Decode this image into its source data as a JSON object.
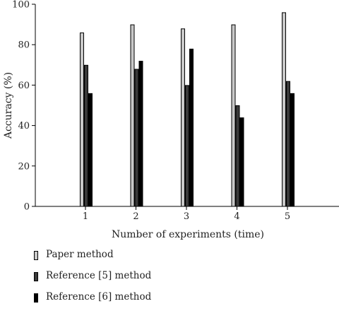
{
  "chart_data": {
    "type": "bar",
    "categories": [
      "1",
      "2",
      "3",
      "4",
      "5"
    ],
    "series": [
      {
        "name": "Paper method",
        "values": [
          86,
          90,
          88,
          90,
          96
        ],
        "color": "#c8c8c8"
      },
      {
        "name": "Reference [5] method",
        "values": [
          70,
          68,
          60,
          50,
          62
        ],
        "color": "#3a3a3a"
      },
      {
        "name": "Reference [6] method",
        "values": [
          56,
          72,
          78,
          44,
          56
        ],
        "color": "#000000"
      }
    ],
    "title": "",
    "xlabel": "Number of experiments (time)",
    "ylabel": "Accuracy (%)",
    "ylim": [
      0,
      100
    ],
    "yticks": [
      "0",
      "20",
      "40",
      "60",
      "80",
      "100"
    ],
    "grid": false,
    "legend_position": "bottom"
  }
}
